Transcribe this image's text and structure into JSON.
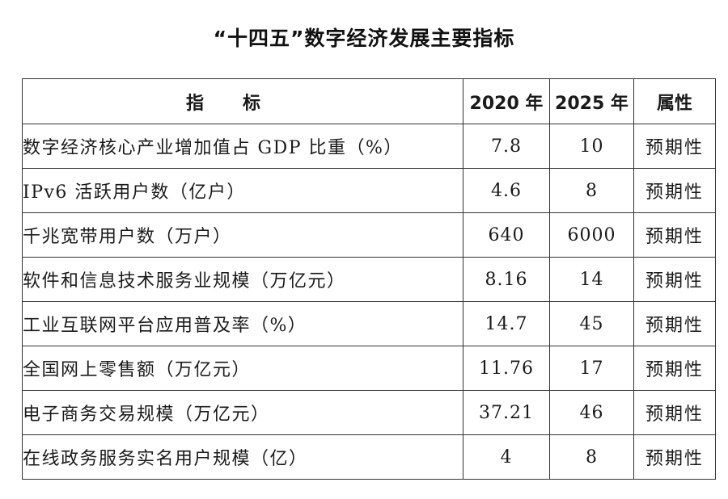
{
  "document": {
    "title": "“十四五”数字经济发展主要指标"
  },
  "table": {
    "headers": {
      "indicator": "指标",
      "year2020": "2020 年",
      "year2025": "2025 年",
      "attribute": "属性"
    },
    "rows": [
      {
        "indicator": "数字经济核心产业增加值占 GDP 比重（%）",
        "v2020": "7.8",
        "v2025": "10",
        "attribute": "预期性"
      },
      {
        "indicator": "IPv6 活跃用户数（亿户）",
        "v2020": "4.6",
        "v2025": "8",
        "attribute": "预期性"
      },
      {
        "indicator": "千兆宽带用户数（万户）",
        "v2020": "640",
        "v2025": "6000",
        "attribute": "预期性"
      },
      {
        "indicator": "软件和信息技术服务业规模（万亿元）",
        "v2020": "8.16",
        "v2025": "14",
        "attribute": "预期性"
      },
      {
        "indicator": "工业互联网平台应用普及率（%）",
        "v2020": "14.7",
        "v2025": "45",
        "attribute": "预期性"
      },
      {
        "indicator": "全国网上零售额（万亿元）",
        "v2020": "11.76",
        "v2025": "17",
        "attribute": "预期性"
      },
      {
        "indicator": "电子商务交易规模（万亿元）",
        "v2020": "37.21",
        "v2025": "46",
        "attribute": "预期性"
      },
      {
        "indicator": "在线政务服务实名用户规模（亿）",
        "v2020": "4",
        "v2025": "8",
        "attribute": "预期性"
      }
    ]
  }
}
